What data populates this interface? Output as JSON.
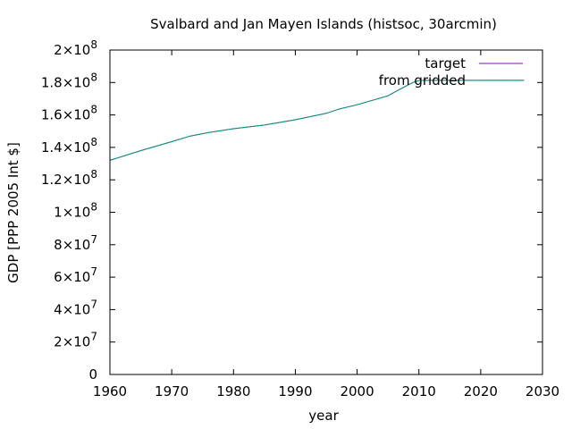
{
  "chart_data": {
    "type": "line",
    "title": "Svalbard and Jan Mayen Islands (histsoc, 30arcmin)",
    "xlabel": "year",
    "ylabel": "GDP [PPP 2005 Int $]",
    "xlim": [
      1960,
      2030
    ],
    "ylim": [
      0,
      200000000
    ],
    "grid": false,
    "legend_position": "top-right",
    "x_ticks": [
      1960,
      1970,
      1980,
      1990,
      2000,
      2010,
      2020,
      2030
    ],
    "x_tick_labels": [
      "1960",
      "1970",
      "1980",
      "1990",
      "2000",
      "2010",
      "2020",
      "2030"
    ],
    "y_ticks": [
      {
        "value": 0,
        "mantissa": "0",
        "exponent": ""
      },
      {
        "value": 20000000,
        "mantissa": "2×10",
        "exponent": "7"
      },
      {
        "value": 40000000,
        "mantissa": "4×10",
        "exponent": "7"
      },
      {
        "value": 60000000,
        "mantissa": "6×10",
        "exponent": "7"
      },
      {
        "value": 80000000,
        "mantissa": "8×10",
        "exponent": "7"
      },
      {
        "value": 100000000,
        "mantissa": "1×10",
        "exponent": "8"
      },
      {
        "value": 120000000,
        "mantissa": "1.2×10",
        "exponent": "8"
      },
      {
        "value": 140000000,
        "mantissa": "1.4×10",
        "exponent": "8"
      },
      {
        "value": 160000000,
        "mantissa": "1.6×10",
        "exponent": "8"
      },
      {
        "value": 180000000,
        "mantissa": "1.8×10",
        "exponent": "8"
      },
      {
        "value": 200000000,
        "mantissa": "2×10",
        "exponent": "8"
      }
    ],
    "series": [
      {
        "name": "target",
        "color": "#9400d3",
        "x": [
          1960,
          1965,
          1970,
          1973,
          1976,
          1980,
          1985,
          1990,
          1995,
          1997,
          2000,
          2002,
          2005,
          2007,
          2009,
          2010,
          2011,
          2015,
          2020,
          2027
        ],
        "y": [
          132000000,
          138000000,
          143500000,
          147000000,
          149200000,
          151500000,
          153800000,
          157000000,
          161000000,
          163500000,
          166300000,
          168500000,
          171800000,
          176000000,
          180000000,
          181200000,
          181300000,
          181300000,
          181300000,
          181300000
        ]
      },
      {
        "name": "from gridded",
        "color": "#009e73",
        "x": [
          1960,
          1965,
          1970,
          1973,
          1976,
          1980,
          1985,
          1990,
          1995,
          1997,
          2000,
          2002,
          2005,
          2007,
          2009,
          2010,
          2011,
          2015,
          2020,
          2027
        ],
        "y": [
          132000000,
          138000000,
          143500000,
          147000000,
          149200000,
          151500000,
          153800000,
          157000000,
          161000000,
          163500000,
          166300000,
          168500000,
          171800000,
          176000000,
          180000000,
          181200000,
          181300000,
          181300000,
          181300000,
          181300000
        ]
      }
    ]
  }
}
